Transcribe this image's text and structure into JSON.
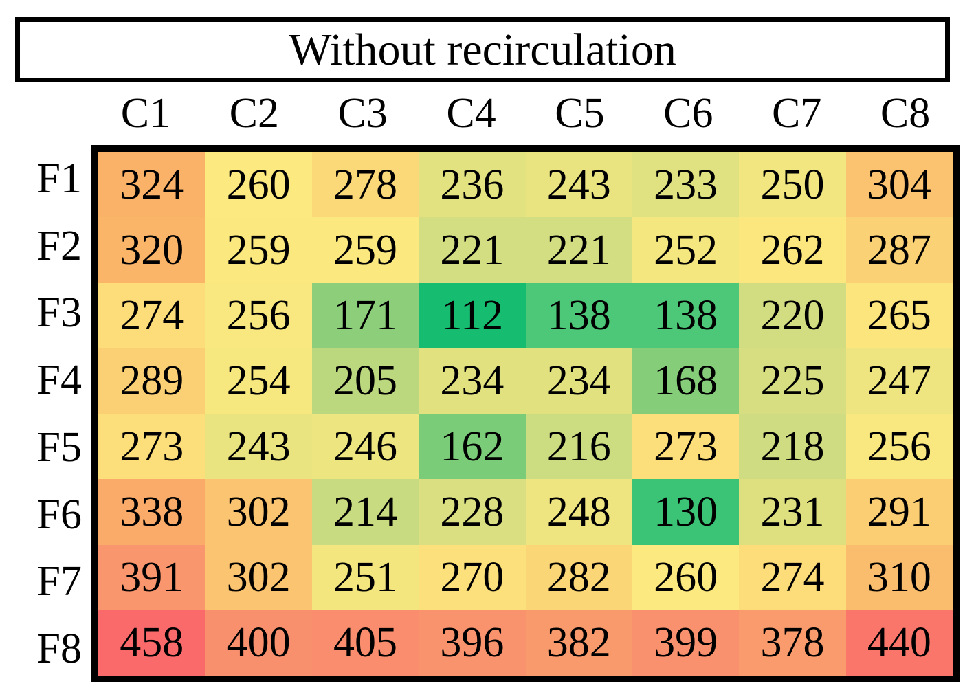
{
  "title": "Without recirculation",
  "chart_data": {
    "type": "heatmap",
    "title": "Without recirculation",
    "columns": [
      "C1",
      "C2",
      "C3",
      "C4",
      "C5",
      "C6",
      "C7",
      "C8"
    ],
    "rows": [
      "F1",
      "F2",
      "F3",
      "F4",
      "F5",
      "F6",
      "F7",
      "F8"
    ],
    "values": [
      [
        324,
        260,
        278,
        236,
        243,
        233,
        250,
        304
      ],
      [
        320,
        259,
        259,
        221,
        221,
        252,
        262,
        287
      ],
      [
        274,
        256,
        171,
        112,
        138,
        138,
        220,
        265
      ],
      [
        289,
        254,
        205,
        234,
        234,
        168,
        225,
        247
      ],
      [
        273,
        243,
        246,
        162,
        216,
        273,
        218,
        256
      ],
      [
        338,
        302,
        214,
        228,
        248,
        130,
        231,
        291
      ],
      [
        391,
        302,
        251,
        270,
        282,
        260,
        274,
        310
      ],
      [
        458,
        400,
        405,
        396,
        382,
        399,
        378,
        440
      ]
    ],
    "value_range": [
      112,
      458
    ],
    "legend": "none",
    "grid": "off",
    "colormap": {
      "description": "green (low) through yellow (mid) to red (high)",
      "anchors": [
        {
          "value": 112,
          "color": "#16BC70"
        },
        {
          "value": 138,
          "color": "#4CC878"
        },
        {
          "value": 171,
          "color": "#8CCE7A"
        },
        {
          "value": 221,
          "color": "#D3DD81"
        },
        {
          "value": 260,
          "color": "#FCE97F"
        },
        {
          "value": 324,
          "color": "#FAB168"
        },
        {
          "value": 391,
          "color": "#F9966E"
        },
        {
          "value": 458,
          "color": "#FA6A6A"
        }
      ]
    },
    "text_color": "#000000",
    "border_color": "#000000",
    "background": "#FFFFFF"
  }
}
